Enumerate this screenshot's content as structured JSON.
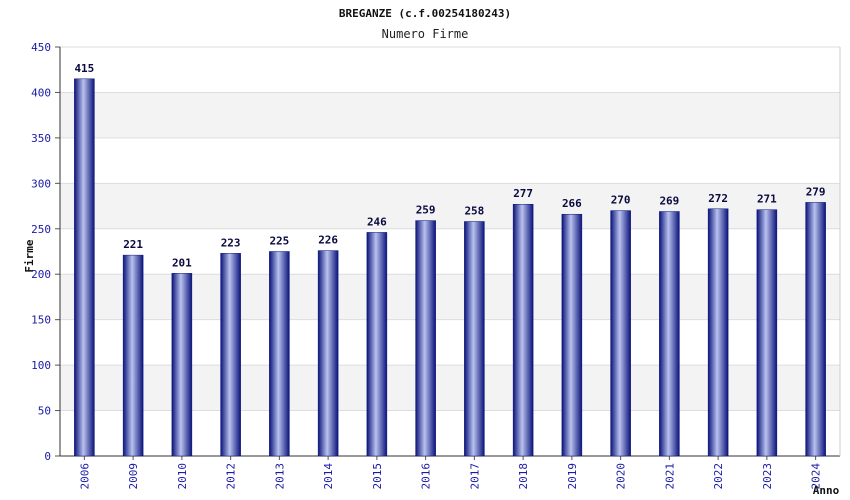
{
  "chart_data": {
    "type": "bar",
    "title": "BREGANZE (c.f.00254180243)",
    "subtitle": "Numero Firme",
    "xlabel": "Anno",
    "ylabel": "Firme",
    "ylim": [
      0,
      450
    ],
    "yticks": [
      0,
      50,
      100,
      150,
      200,
      250,
      300,
      350,
      400,
      450
    ],
    "grid": true,
    "categories": [
      "2006",
      "2009",
      "2010",
      "2012",
      "2013",
      "2014",
      "2015",
      "2016",
      "2017",
      "2018",
      "2019",
      "2020",
      "2021",
      "2022",
      "2023",
      "2024"
    ],
    "values": [
      415,
      221,
      201,
      223,
      225,
      226,
      246,
      259,
      258,
      277,
      266,
      270,
      269,
      272,
      271,
      279
    ],
    "bar_color": "#1f2a8c",
    "band_color": "#f3f3f3"
  }
}
